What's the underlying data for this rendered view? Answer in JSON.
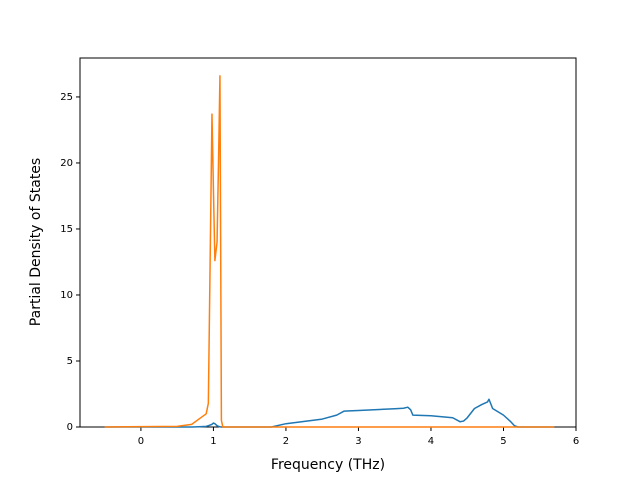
{
  "chart_data": {
    "type": "line",
    "xlabel": "Frequency (THz)",
    "ylabel": "Partial Density of States",
    "x": [
      -0.5,
      0.5,
      0.7,
      0.8,
      0.9,
      0.93,
      0.98,
      1.0,
      1.02,
      1.05,
      1.07,
      1.09,
      1.11,
      1.13,
      1.8,
      2.0,
      2.5,
      2.7,
      2.8,
      3.0,
      3.5,
      3.62,
      3.68,
      3.72,
      3.75,
      4.0,
      4.3,
      4.4,
      4.45,
      4.5,
      4.6,
      4.7,
      4.78,
      4.8,
      4.85,
      5.0,
      5.1,
      5.15,
      5.2,
      5.7
    ],
    "series": [
      {
        "color": "#1f77b4",
        "values": [
          0,
          0,
          0,
          0.02,
          0.05,
          0.1,
          0.2,
          0.3,
          0.25,
          0.1,
          0.05,
          0.02,
          0,
          0,
          0,
          0.25,
          0.6,
          0.9,
          1.2,
          1.25,
          1.38,
          1.42,
          1.5,
          1.3,
          0.9,
          0.85,
          0.7,
          0.4,
          0.45,
          0.7,
          1.4,
          1.7,
          1.9,
          2.1,
          1.4,
          0.9,
          0.4,
          0.1,
          0,
          0
        ]
      },
      {
        "color": "#ff7f0e",
        "values": [
          0,
          0.05,
          0.2,
          0.6,
          1.0,
          1.8,
          23.7,
          18,
          12.6,
          14,
          20,
          26.6,
          0.5,
          0,
          0,
          0,
          0,
          0,
          0,
          0,
          0,
          0,
          0,
          0,
          0,
          0,
          0,
          0,
          0,
          0,
          0,
          0,
          0,
          0,
          0,
          0,
          0,
          0,
          0,
          0
        ]
      }
    ],
    "xlim": [
      -0.84,
      6
    ],
    "ylim": [
      0,
      27.95
    ],
    "xticks": [
      0,
      1,
      2,
      3,
      4,
      5,
      6
    ],
    "yticks": [
      0,
      5,
      10,
      15,
      20,
      25
    ],
    "grid": false
  }
}
